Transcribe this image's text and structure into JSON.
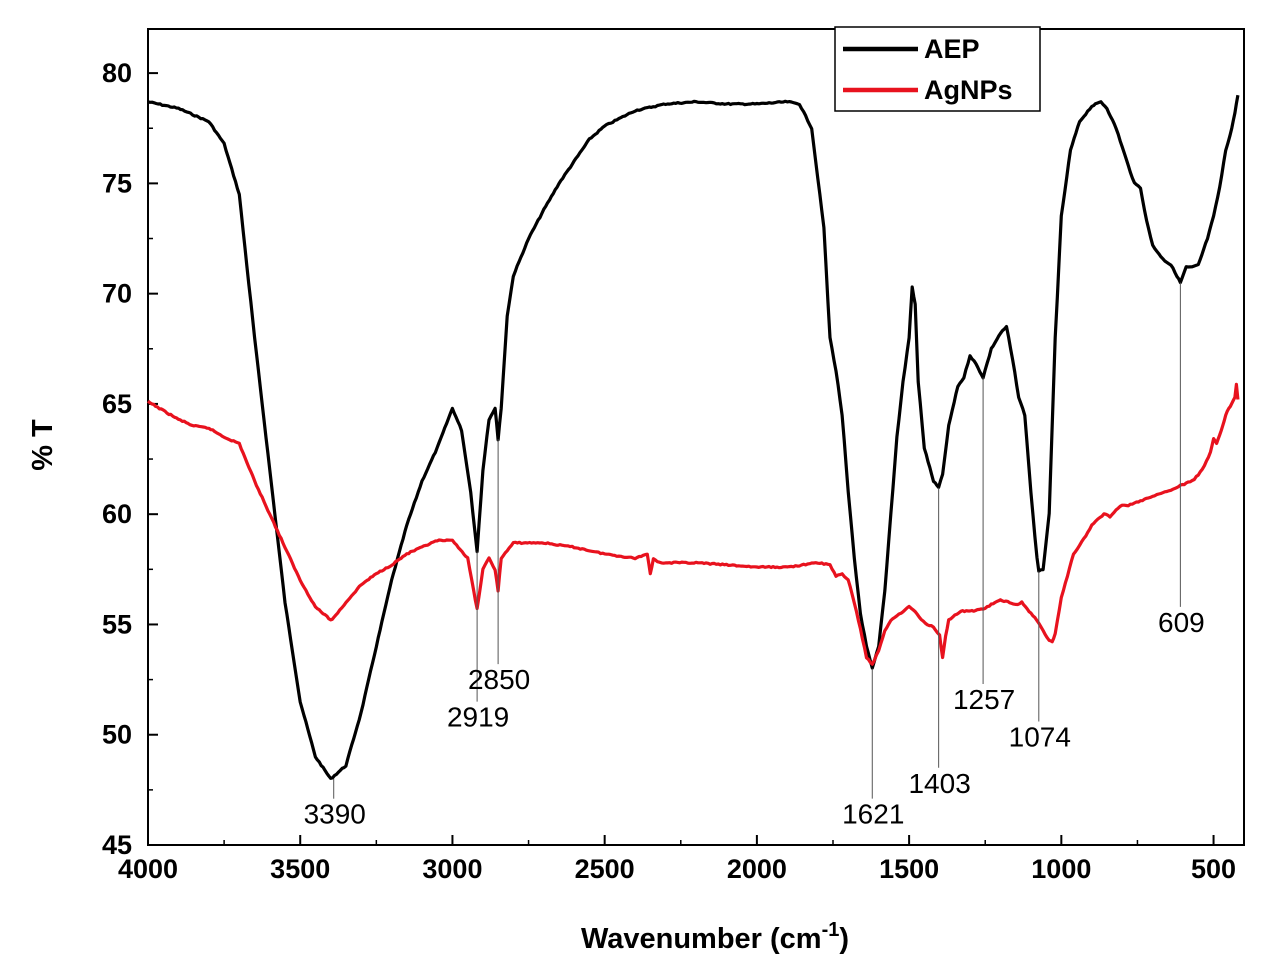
{
  "chart_data": {
    "type": "line",
    "xlabel": "Wavenumber (cm",
    "xlabel_sup": "-1",
    "xlabel_close": ")",
    "ylabel": "% T",
    "xlim": [
      4000,
      400
    ],
    "ylim": [
      45,
      82
    ],
    "x_reversed": true,
    "x_ticks": [
      4000,
      3500,
      3000,
      2500,
      2000,
      1500,
      1000,
      500
    ],
    "y_ticks": [
      45,
      50,
      55,
      60,
      65,
      70,
      75,
      80
    ],
    "legend_position": "top-right",
    "series": [
      {
        "name": "AEP",
        "color": "#000000",
        "points": [
          [
            4000,
            78.7
          ],
          [
            3900,
            78.4
          ],
          [
            3800,
            77.8
          ],
          [
            3750,
            76.8
          ],
          [
            3700,
            74.5
          ],
          [
            3650,
            68
          ],
          [
            3600,
            62
          ],
          [
            3550,
            56
          ],
          [
            3500,
            51.5
          ],
          [
            3450,
            49
          ],
          [
            3400,
            48.0
          ],
          [
            3350,
            48.6
          ],
          [
            3300,
            51
          ],
          [
            3250,
            54
          ],
          [
            3200,
            57
          ],
          [
            3150,
            59.5
          ],
          [
            3100,
            61.5
          ],
          [
            3050,
            63
          ],
          [
            3000,
            64.8
          ],
          [
            2970,
            63.8
          ],
          [
            2940,
            61
          ],
          [
            2919,
            58.3
          ],
          [
            2900,
            62
          ],
          [
            2880,
            64.3
          ],
          [
            2860,
            64.8
          ],
          [
            2850,
            63.4
          ],
          [
            2840,
            64.8
          ],
          [
            2820,
            69
          ],
          [
            2800,
            70.8
          ],
          [
            2750,
            72.5
          ],
          [
            2700,
            73.8
          ],
          [
            2650,
            75
          ],
          [
            2600,
            76
          ],
          [
            2550,
            77
          ],
          [
            2500,
            77.6
          ],
          [
            2400,
            78.3
          ],
          [
            2300,
            78.6
          ],
          [
            2200,
            78.7
          ],
          [
            2100,
            78.6
          ],
          [
            2000,
            78.6
          ],
          [
            1900,
            78.7
          ],
          [
            1860,
            78.6
          ],
          [
            1820,
            77.5
          ],
          [
            1780,
            73
          ],
          [
            1760,
            68
          ],
          [
            1740,
            66.5
          ],
          [
            1720,
            64.5
          ],
          [
            1700,
            61
          ],
          [
            1680,
            58
          ],
          [
            1660,
            55.5
          ],
          [
            1640,
            54
          ],
          [
            1621,
            53.0
          ],
          [
            1600,
            54
          ],
          [
            1580,
            56.5
          ],
          [
            1560,
            60
          ],
          [
            1540,
            63.5
          ],
          [
            1520,
            66
          ],
          [
            1500,
            68
          ],
          [
            1490,
            70.3
          ],
          [
            1480,
            69.5
          ],
          [
            1470,
            66
          ],
          [
            1450,
            63
          ],
          [
            1420,
            61.5
          ],
          [
            1403,
            61.2
          ],
          [
            1390,
            61.8
          ],
          [
            1370,
            64
          ],
          [
            1340,
            65.8
          ],
          [
            1320,
            66.2
          ],
          [
            1300,
            67.2
          ],
          [
            1280,
            66.8
          ],
          [
            1257,
            66.2
          ],
          [
            1230,
            67.5
          ],
          [
            1200,
            68.2
          ],
          [
            1180,
            68.5
          ],
          [
            1160,
            67
          ],
          [
            1140,
            65.3
          ],
          [
            1120,
            64.5
          ],
          [
            1100,
            61
          ],
          [
            1080,
            58
          ],
          [
            1074,
            57.4
          ],
          [
            1060,
            57.5
          ],
          [
            1040,
            60
          ],
          [
            1020,
            68
          ],
          [
            1000,
            73.5
          ],
          [
            970,
            76.5
          ],
          [
            940,
            77.8
          ],
          [
            900,
            78.5
          ],
          [
            870,
            78.7
          ],
          [
            850,
            78.4
          ],
          [
            820,
            77.5
          ],
          [
            780,
            75.8
          ],
          [
            760,
            75
          ],
          [
            740,
            74.8
          ],
          [
            720,
            73.3
          ],
          [
            700,
            72.2
          ],
          [
            680,
            71.8
          ],
          [
            660,
            71.5
          ],
          [
            640,
            71.3
          ],
          [
            620,
            70.8
          ],
          [
            609,
            70.5
          ],
          [
            590,
            71.2
          ],
          [
            570,
            71.2
          ],
          [
            550,
            71.3
          ],
          [
            520,
            72.5
          ],
          [
            500,
            73.5
          ],
          [
            480,
            74.8
          ],
          [
            460,
            76.5
          ],
          [
            440,
            77.5
          ],
          [
            430,
            78.2
          ],
          [
            420,
            79
          ]
        ]
      },
      {
        "name": "AgNPs",
        "color": "#e8121e",
        "points": [
          [
            4000,
            65.1
          ],
          [
            3950,
            64.7
          ],
          [
            3900,
            64.3
          ],
          [
            3850,
            64.0
          ],
          [
            3800,
            63.9
          ],
          [
            3750,
            63.5
          ],
          [
            3700,
            63.2
          ],
          [
            3650,
            61.5
          ],
          [
            3600,
            60
          ],
          [
            3550,
            58.5
          ],
          [
            3500,
            57
          ],
          [
            3450,
            55.8
          ],
          [
            3400,
            55.2
          ],
          [
            3390,
            55.3
          ],
          [
            3350,
            56
          ],
          [
            3300,
            56.8
          ],
          [
            3250,
            57.3
          ],
          [
            3200,
            57.7
          ],
          [
            3150,
            58.2
          ],
          [
            3100,
            58.5
          ],
          [
            3050,
            58.8
          ],
          [
            3000,
            58.8
          ],
          [
            2980,
            58.5
          ],
          [
            2950,
            58.0
          ],
          [
            2930,
            56.5
          ],
          [
            2919,
            55.7
          ],
          [
            2900,
            57.5
          ],
          [
            2880,
            58.0
          ],
          [
            2860,
            57.5
          ],
          [
            2850,
            56.5
          ],
          [
            2840,
            58.0
          ],
          [
            2800,
            58.7
          ],
          [
            2700,
            58.7
          ],
          [
            2600,
            58.5
          ],
          [
            2500,
            58.2
          ],
          [
            2400,
            58.0
          ],
          [
            2360,
            58.2
          ],
          [
            2350,
            57.3
          ],
          [
            2340,
            58.0
          ],
          [
            2320,
            57.8
          ],
          [
            2300,
            57.8
          ],
          [
            2200,
            57.8
          ],
          [
            2100,
            57.7
          ],
          [
            2000,
            57.6
          ],
          [
            1900,
            57.6
          ],
          [
            1800,
            57.8
          ],
          [
            1760,
            57.7
          ],
          [
            1740,
            57.2
          ],
          [
            1720,
            57.3
          ],
          [
            1700,
            57.0
          ],
          [
            1680,
            56.0
          ],
          [
            1660,
            54.8
          ],
          [
            1640,
            53.5
          ],
          [
            1621,
            53.2
          ],
          [
            1600,
            53.8
          ],
          [
            1580,
            54.7
          ],
          [
            1560,
            55.2
          ],
          [
            1540,
            55.4
          ],
          [
            1520,
            55.6
          ],
          [
            1500,
            55.8
          ],
          [
            1480,
            55.6
          ],
          [
            1460,
            55.2
          ],
          [
            1440,
            55.0
          ],
          [
            1420,
            54.9
          ],
          [
            1400,
            54.5
          ],
          [
            1390,
            53.5
          ],
          [
            1380,
            54.5
          ],
          [
            1370,
            55.2
          ],
          [
            1350,
            55.4
          ],
          [
            1330,
            55.6
          ],
          [
            1300,
            55.6
          ],
          [
            1257,
            55.7
          ],
          [
            1230,
            55.9
          ],
          [
            1200,
            56.1
          ],
          [
            1170,
            56.0
          ],
          [
            1150,
            55.9
          ],
          [
            1130,
            56.0
          ],
          [
            1100,
            55.5
          ],
          [
            1080,
            55.2
          ],
          [
            1060,
            54.7
          ],
          [
            1040,
            54.3
          ],
          [
            1030,
            54.2
          ],
          [
            1020,
            54.6
          ],
          [
            1000,
            56.2
          ],
          [
            980,
            57.2
          ],
          [
            960,
            58.2
          ],
          [
            940,
            58.6
          ],
          [
            920,
            59.0
          ],
          [
            900,
            59.5
          ],
          [
            880,
            59.8
          ],
          [
            860,
            60.0
          ],
          [
            840,
            59.9
          ],
          [
            820,
            60.2
          ],
          [
            800,
            60.4
          ],
          [
            780,
            60.4
          ],
          [
            760,
            60.5
          ],
          [
            740,
            60.6
          ],
          [
            720,
            60.7
          ],
          [
            700,
            60.8
          ],
          [
            680,
            60.9
          ],
          [
            660,
            61.0
          ],
          [
            640,
            61.1
          ],
          [
            620,
            61.2
          ],
          [
            609,
            61.3
          ],
          [
            590,
            61.4
          ],
          [
            570,
            61.5
          ],
          [
            550,
            61.8
          ],
          [
            530,
            62.2
          ],
          [
            510,
            62.8
          ],
          [
            500,
            63.4
          ],
          [
            490,
            63.2
          ],
          [
            480,
            63.6
          ],
          [
            470,
            64.0
          ],
          [
            460,
            64.5
          ],
          [
            450,
            64.8
          ],
          [
            440,
            65.0
          ],
          [
            430,
            65.3
          ],
          [
            425,
            65.9
          ],
          [
            420,
            65.2
          ]
        ]
      }
    ],
    "annotations": [
      {
        "label": "3390",
        "x": 3390,
        "y_start": 48.0,
        "y_end": 47.1
      },
      {
        "label": "2919",
        "x": 2919,
        "y_start": 58.3,
        "y_end": 51.5
      },
      {
        "label": "2850",
        "x": 2850,
        "y_start": 63.4,
        "y_end": 53.2
      },
      {
        "label": "1621",
        "x": 1621,
        "y_start": 53.0,
        "y_end": 47.1
      },
      {
        "label": "1403",
        "x": 1403,
        "y_start": 61.2,
        "y_end": 48.5
      },
      {
        "label": "1257",
        "x": 1257,
        "y_start": 66.2,
        "y_end": 52.3
      },
      {
        "label": "1074",
        "x": 1074,
        "y_start": 57.4,
        "y_end": 50.6
      },
      {
        "label": "609",
        "x": 609,
        "y_start": 70.5,
        "y_end": 55.8
      }
    ]
  }
}
